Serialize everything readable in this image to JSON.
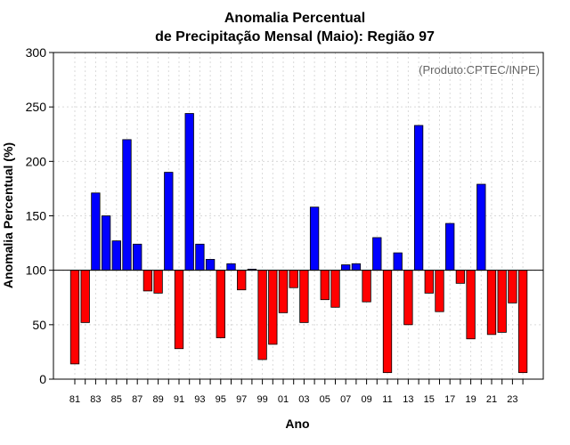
{
  "chart_data": {
    "type": "bar",
    "title_line1": "Anomalia Percentual",
    "title_line2": "de Precipitação Mensal (Maio): Região 97",
    "xlabel": "Ano",
    "ylabel": "Anomalia Percentual (%)",
    "credit": "(Produto:CPTEC/INPE)",
    "ylim": [
      0,
      300
    ],
    "yticks": [
      0,
      50,
      100,
      150,
      200,
      250,
      300
    ],
    "baseline": 100,
    "colors": {
      "above": "#0000ff",
      "below": "#ff0000"
    },
    "categories": [
      "81",
      "82",
      "83",
      "84",
      "85",
      "86",
      "87",
      "88",
      "89",
      "90",
      "91",
      "92",
      "93",
      "94",
      "95",
      "96",
      "97",
      "98",
      "99",
      "00",
      "01",
      "02",
      "03",
      "04",
      "05",
      "06",
      "07",
      "08",
      "09",
      "10",
      "11",
      "12",
      "13",
      "14",
      "15",
      "16",
      "17",
      "18",
      "19",
      "20",
      "21",
      "22",
      "23",
      "24"
    ],
    "xtick_labels": [
      "81",
      "83",
      "85",
      "87",
      "89",
      "91",
      "93",
      "95",
      "97",
      "99",
      "01",
      "03",
      "05",
      "07",
      "09",
      "11",
      "13",
      "15",
      "17",
      "19",
      "21",
      "23"
    ],
    "values": [
      14,
      52,
      171,
      150,
      127,
      220,
      124,
      81,
      79,
      190,
      28,
      244,
      124,
      110,
      38,
      106,
      82,
      101,
      18,
      32,
      61,
      84,
      52,
      158,
      73,
      66,
      105,
      106,
      71,
      130,
      6,
      116,
      50,
      233,
      79,
      62,
      143,
      88,
      37,
      179,
      41,
      43,
      70,
      6
    ]
  }
}
